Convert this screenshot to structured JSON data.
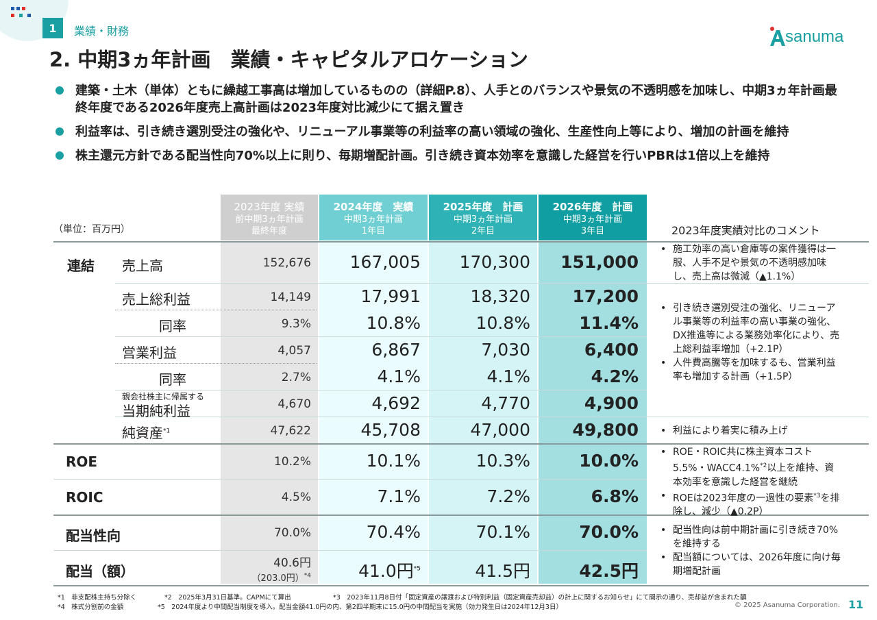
{
  "section": {
    "number": "1",
    "label": "業績・財務"
  },
  "logo": {
    "text": "sanuma",
    "brand_color": "#1a9fa3",
    "accent_red": "#e0302e",
    "accent_blue": "#1e5aa8"
  },
  "title": "2. 中期3ヵ年計画　業績・キャピタルアロケーション",
  "bullets": [
    "建築・土木（単体）ともに繰越工事高は増加しているものの（詳細P.8）、人手とのバランスや景気の不透明感を加味し、中期3ヵ年計画最終年度である2026年度売上高計画は2023年度対比減少にて据え置き",
    "利益率は、引き続き選別受注の強化や、リニューアル事業等の利益率の高い領域の強化、生産性向上等により、増加の計画を維持",
    "株主還元方針である配当性向70%以上に則り、毎期増配計画。引き続き資本効率を意識した経営を行いPBRは1倍以上を維持"
  ],
  "table": {
    "unit": "（単位：百万円）",
    "headers": [
      {
        "main": "2023年度 実績",
        "sub1": "前中期3ヵ年計画",
        "sub2": "最終年度"
      },
      {
        "main": "2024年度　実績",
        "sub1": "中期3ヵ年計画",
        "sub2": "1年目"
      },
      {
        "main": "2025年度　計画",
        "sub1": "中期3ヵ年計画",
        "sub2": "2年目"
      },
      {
        "main": "2026年度　計画",
        "sub1": "中期3ヵ年計画",
        "sub2": "3年目"
      }
    ],
    "comment_header": "2023年度実績対比のコメント",
    "group_label": "連結",
    "rows": {
      "sales": {
        "label": "売上高",
        "v2023": "152,676",
        "v2024": "167,005",
        "v2025": "170,300",
        "v2026": "151,000"
      },
      "gross": {
        "label": "売上総利益",
        "v2023": "14,149",
        "v2024": "17,991",
        "v2025": "18,320",
        "v2026": "17,200"
      },
      "gross_rate": {
        "label": "同率",
        "v2023": "9.3%",
        "v2024": "10.8%",
        "v2025": "10.8%",
        "v2026": "11.4%"
      },
      "op": {
        "label": "営業利益",
        "v2023": "4,057",
        "v2024": "6,867",
        "v2025": "7,030",
        "v2026": "6,400"
      },
      "op_rate": {
        "label": "同率",
        "v2023": "2.7%",
        "v2024": "4.1%",
        "v2025": "4.1%",
        "v2026": "4.2%"
      },
      "net": {
        "small": "親会社株主に帰属する",
        "label": "当期純利益",
        "v2023": "4,670",
        "v2024": "4,692",
        "v2025": "4,770",
        "v2026": "4,900"
      },
      "equity": {
        "label": "純資産",
        "sup": "*1",
        "v2023": "47,622",
        "v2024": "45,708",
        "v2025": "47,000",
        "v2026": "49,800"
      },
      "roe": {
        "label": "ROE",
        "v2023": "10.2%",
        "v2024": "10.1%",
        "v2025": "10.3%",
        "v2026": "10.0%"
      },
      "roic": {
        "label": "ROIC",
        "v2023": "4.5%",
        "v2024": "7.1%",
        "v2025": "7.2%",
        "v2026": "6.8%"
      },
      "payout": {
        "label": "配当性向",
        "v2023": "70.0%",
        "v2024": "70.4%",
        "v2025": "70.1%",
        "v2026": "70.0%"
      },
      "dividend": {
        "label": "配当（額）",
        "v2023": "40.6円",
        "v2023_sub": "（203.0円）",
        "v2023_sup": "*4",
        "v2024": "41.0円",
        "v2024_sup": "*5",
        "v2025": "41.5円",
        "v2026": "42.5円"
      }
    }
  },
  "comments": {
    "c1": "施工効率の高い倉庫等の案件獲得は一服、人手不足や景気の不透明感加味し、売上高は微減（▲1.1%）",
    "c2a": "引き続き選別受注の強化、リニューアル事業等の利益率の高い事業の強化、DX推進等による業務効率化により、売上総利益率増加（+2.1P）",
    "c2b": "人件費高騰等を加味するも、営業利益率も増加する計画（+1.5P）",
    "c3": "利益により着実に積み上げ",
    "c4a_1": "ROE・ROIC共に株主資本コスト5.5%・WACC4.1%",
    "c4a_sup": "*2",
    "c4a_2": "以上を維持、資本効率を意識した経営を継続",
    "c4b_1": "ROEは2023年度の一過性の要素",
    "c4b_sup": "*3",
    "c4b_2": "を排除し、減少（▲0.2P）",
    "c5a": "配当性向は前中期計画に引き続き70%を維持する",
    "c5b": "配当額については、2026年度に向け毎期増配計画"
  },
  "footnotes": {
    "f1": "*1　非支配株主持ち分除く",
    "f2": "*2　2025年3月31日基準。CAPMにて算出",
    "f3": "*3　2023年11月8日付「固定資産の譲渡および特別利益（固定資産売却益）の計上に関するお知らせ」にて開示の通り、売却益が含まれた額",
    "f4": "*4　株式分割前の金額",
    "f5": "*5　2024年度より中間配当制度を導入。配当金額41.0円の内、第2四半期末に15.0円の中間配当を実施（効力発生日は2024年12月3日）"
  },
  "copyright": "© 2025 Asanuma Corporation.",
  "page_number": "11"
}
